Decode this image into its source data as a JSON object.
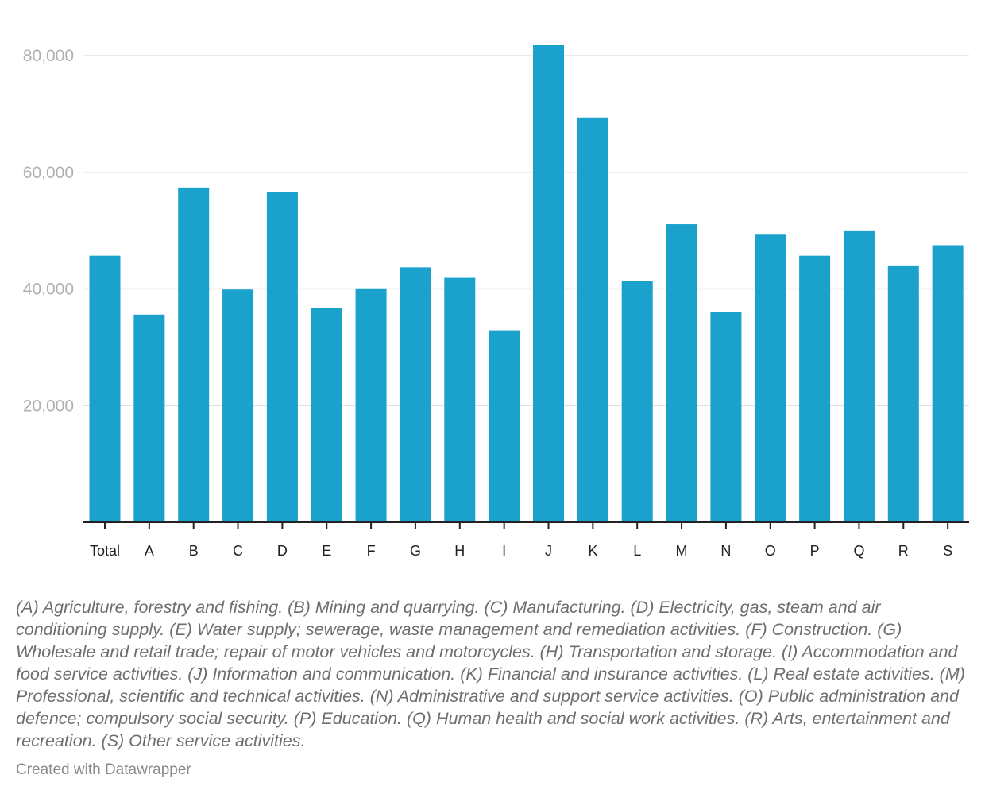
{
  "chart_data": {
    "type": "bar",
    "categories": [
      "Total",
      "A",
      "B",
      "C",
      "D",
      "E",
      "F",
      "G",
      "H",
      "I",
      "J",
      "K",
      "L",
      "M",
      "N",
      "O",
      "P",
      "Q",
      "R",
      "S"
    ],
    "values": [
      45700,
      35600,
      57400,
      39900,
      56600,
      36700,
      40100,
      43700,
      41900,
      32900,
      81800,
      69400,
      41300,
      51100,
      36000,
      49300,
      45700,
      49900,
      43900,
      47500
    ],
    "yticks": [
      20000,
      40000,
      60000,
      80000
    ],
    "ytick_labels": [
      "20,000",
      "40,000",
      "60,000",
      "80,000"
    ],
    "ylim": [
      0,
      85000
    ],
    "grid": true,
    "bar_color": "#1aa1cc",
    "grid_color": "#e0e0e0",
    "axis_color": "#222222"
  },
  "notes": "(A) Agriculture, forestry and fishing. (B) Mining and quarrying. (C) Manufacturing. (D) Electricity, gas, steam and air conditioning supply. (E) Water supply; sewerage, waste management and remediation activities. (F) Construction. (G) Wholesale and retail trade; repair of motor vehicles and motorcycles. (H) Transportation and storage. (I) Accommodation and food service activities. (J) Information and communication. (K) Financial and insurance activities. (L) Real estate activities. (M) Professional, scientific and technical activities. (N) Administrative and support service activities. (O) Public administration and defence; compulsory social security. (P) Education. (Q) Human health and social work activities. (R) Arts, entertainment and recreation. (S) Other service activities.",
  "credit": "Created with Datawrapper"
}
